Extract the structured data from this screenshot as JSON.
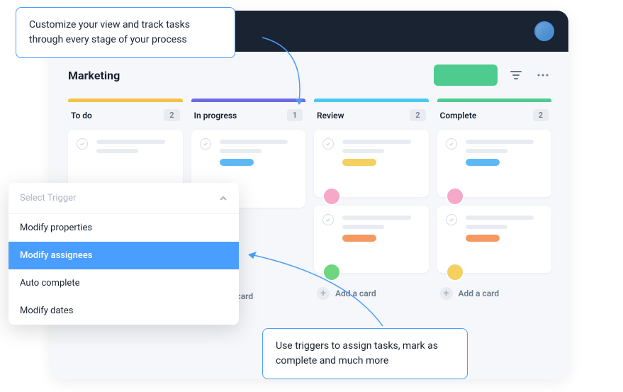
{
  "callouts": {
    "top": "Customize your view and track tasks through every stage of your process",
    "bottom": "Use triggers to assign tasks, mark as complete and much more"
  },
  "page_title": "Marketing",
  "colors": {
    "accent_blue": "#4a9eff",
    "green_btn": "#4ecb8f",
    "dark_header": "#1a2332",
    "col_yellow": "#f5c344",
    "col_purple": "#6b6be5",
    "col_cyan": "#4ac8f0",
    "col_green": "#4ecb8f",
    "pill_blue": "#5eb8f5",
    "pill_yellow": "#f5d060",
    "pill_orange": "#f59960",
    "pill_pink": "#f5a8c8",
    "avatar_green": "#6ed67e",
    "avatar_pink": "#f5a8c8",
    "avatar_yellow": "#f5d060"
  },
  "columns": [
    {
      "title": "To do",
      "count": "2",
      "bar_color": "#f5c344"
    },
    {
      "title": "In progress",
      "count": "1",
      "bar_color": "#6b6be5"
    },
    {
      "title": "Review",
      "count": "2",
      "bar_color": "#4ac8f0"
    },
    {
      "title": "Complete",
      "count": "2",
      "bar_color": "#4ecb8f"
    }
  ],
  "add_card_label": "Add a card",
  "trigger": {
    "header": "Select Trigger",
    "items": [
      "Modify properties",
      "Modify assignees",
      "Auto complete",
      "Modify dates"
    ],
    "selected_index": 1
  }
}
